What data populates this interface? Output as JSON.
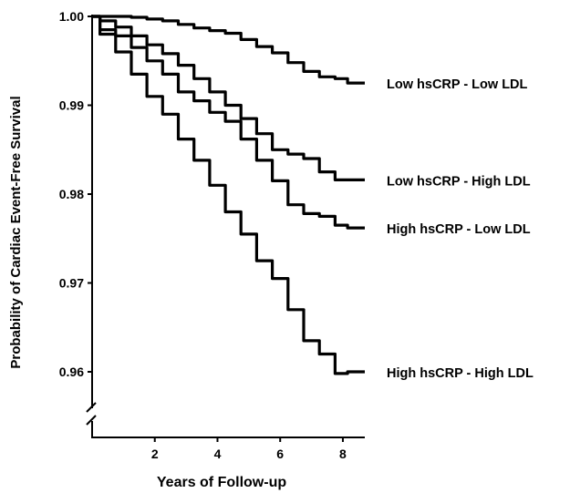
{
  "chart_data": {
    "type": "line",
    "title": "",
    "xlabel": "Years of Follow-up",
    "ylabel": "Probability of Cardiac Event-Free Survival",
    "xlim": [
      0,
      8.7
    ],
    "ylim": [
      0.955,
      1.0
    ],
    "y_axis_break": true,
    "x_ticks": [
      2,
      4,
      6,
      8
    ],
    "x_tick_labels": [
      "2",
      "4",
      "6",
      "8"
    ],
    "y_ticks": [
      0.96,
      0.97,
      0.98,
      0.99,
      1.0
    ],
    "y_tick_labels": [
      "0.96",
      "0.97",
      "0.98",
      "0.99",
      "1.00"
    ],
    "grid": false,
    "legend": "none",
    "line_color": "#000000",
    "series": [
      {
        "name": "Low hsCRP - Low LDL",
        "x": [
          0,
          0.5,
          1,
          1.5,
          2,
          2.5,
          3,
          3.5,
          4,
          4.5,
          5,
          5.5,
          6,
          6.5,
          7,
          7.5,
          8,
          8.3,
          8.7
        ],
        "y": [
          1.0,
          1.0,
          1.0,
          0.9999,
          0.9997,
          0.9995,
          0.9991,
          0.9987,
          0.9984,
          0.9981,
          0.9974,
          0.9966,
          0.9959,
          0.9948,
          0.9938,
          0.9932,
          0.993,
          0.9925,
          0.9925
        ]
      },
      {
        "name": "Low hsCRP - High LDL",
        "x": [
          0,
          0.5,
          1,
          1.5,
          2,
          2.5,
          3,
          3.5,
          4,
          4.5,
          5,
          5.5,
          6,
          6.5,
          7,
          7.5,
          8,
          8.3,
          8.7
        ],
        "y": [
          1.0,
          0.9995,
          0.9988,
          0.9978,
          0.9968,
          0.9958,
          0.9945,
          0.993,
          0.9915,
          0.99,
          0.9885,
          0.9868,
          0.985,
          0.9845,
          0.984,
          0.9825,
          0.9816,
          0.9816,
          0.9816
        ]
      },
      {
        "name": "High hsCRP - Low LDL",
        "x": [
          0,
          0.5,
          1,
          1.5,
          2,
          2.5,
          3,
          3.5,
          4,
          4.5,
          5,
          5.5,
          6,
          6.5,
          7,
          7.5,
          8,
          8.3,
          8.7
        ],
        "y": [
          1.0,
          0.9985,
          0.9978,
          0.9965,
          0.995,
          0.9935,
          0.9915,
          0.9905,
          0.9892,
          0.9882,
          0.9862,
          0.9838,
          0.9815,
          0.9788,
          0.9778,
          0.9775,
          0.9765,
          0.9762,
          0.9762
        ]
      },
      {
        "name": "High hsCRP - High LDL",
        "x": [
          0,
          0.5,
          1,
          1.5,
          2,
          2.5,
          3,
          3.5,
          4,
          4.5,
          5,
          5.5,
          6,
          6.5,
          7,
          7.5,
          8,
          8.3,
          8.7
        ],
        "y": [
          1.0,
          0.998,
          0.996,
          0.9935,
          0.991,
          0.989,
          0.9862,
          0.9838,
          0.981,
          0.978,
          0.9755,
          0.9725,
          0.9705,
          0.967,
          0.9635,
          0.962,
          0.9598,
          0.96,
          0.96
        ]
      }
    ]
  }
}
